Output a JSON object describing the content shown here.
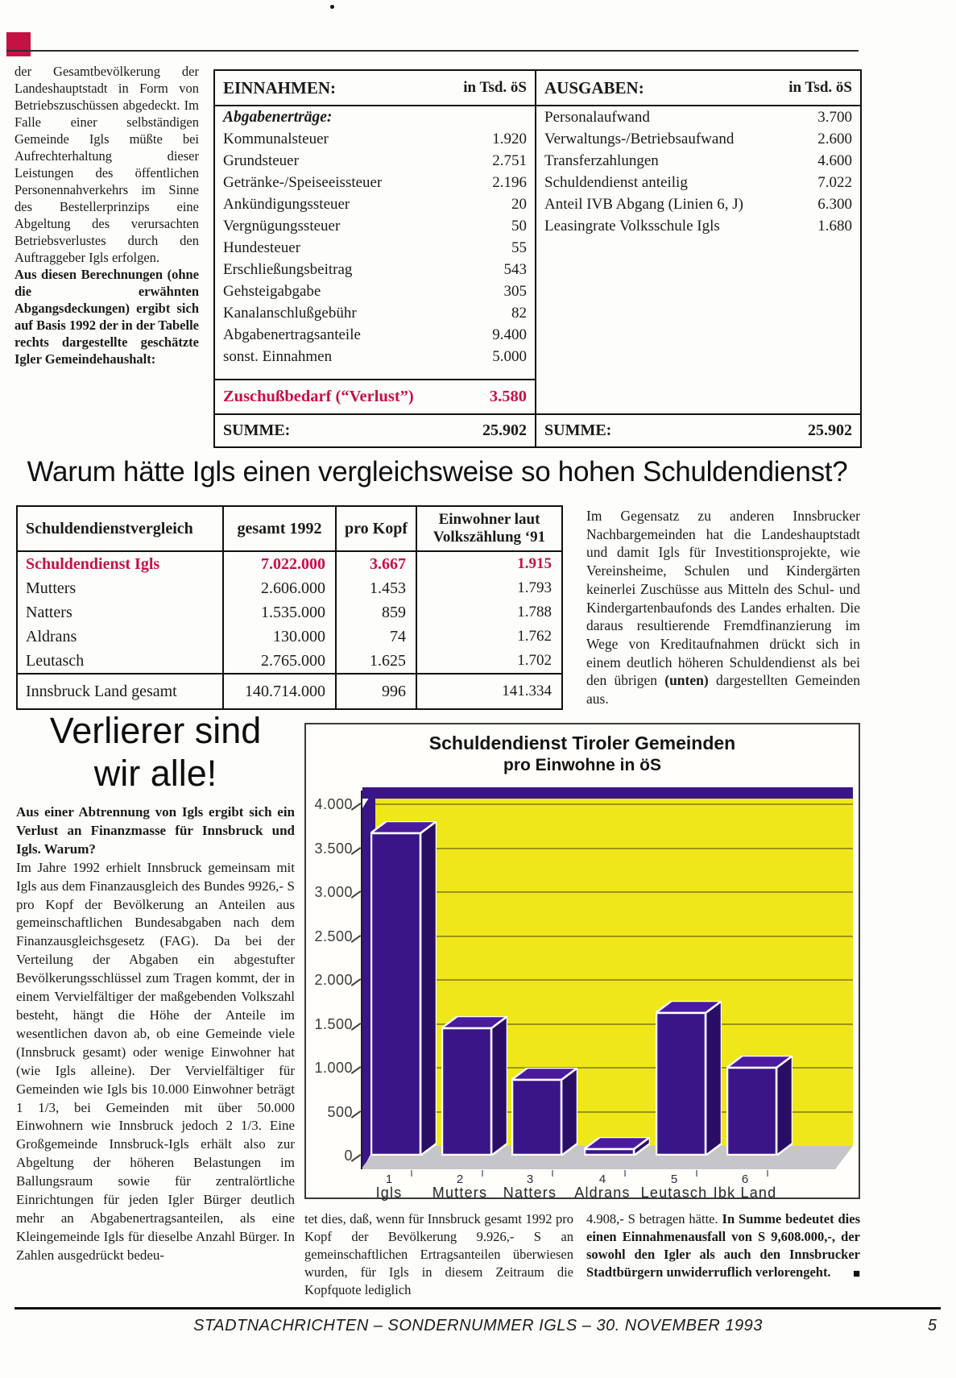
{
  "page": {
    "accent_color": "#c41245",
    "footer_text": "STADTNACHRICHTEN – SONDERNUMMER IGLS –  30. NOVEMBER 1993",
    "page_number": "5"
  },
  "intro_column": {
    "text_normal": "der Gesamtbevölkerung der Landeshauptstadt in Form von Betriebszuschüssen abgedeckt. Im Falle einer selbständigen Gemeinde Igls müßte bei Aufrechterhaltung dieser Leistungen des öffentlichen Personennahverkehrs im Sinne des Bestellerprinzips eine Abgeltung des verursachten Betriebsverlustes durch den Auftraggeber Igls erfolgen.",
    "text_bold": "Aus diesen Berechnungen (ohne die erwähnten Abgangsdeckungen) ergibt sich auf Basis 1992 der in der Tabelle rechts dargestellte geschätzte Igler Gemeindehaushalt:"
  },
  "budget_table": {
    "einnahmen": {
      "title": "EINNAHMEN:",
      "unit": "in Tsd. öS",
      "section": "Abgabenerträge:",
      "rows": [
        {
          "label": "Kommunalsteuer",
          "value": "1.920"
        },
        {
          "label": "Grundsteuer",
          "value": "2.751"
        },
        {
          "label": "Getränke-/Speiseeissteuer",
          "value": "2.196"
        },
        {
          "label": "Ankündigungssteuer",
          "value": "20"
        },
        {
          "label": "Vergnügungssteuer",
          "value": "50"
        },
        {
          "label": "Hundesteuer",
          "value": "55"
        },
        {
          "label": "Erschließungsbeitrag",
          "value": "543"
        },
        {
          "label": "Gehsteigabgabe",
          "value": "305"
        },
        {
          "label": "Kanalanschlußgebühr",
          "value": "82"
        },
        {
          "label": "Abgabenertragsanteile",
          "value": "9.400"
        },
        {
          "label": "sonst. Einnahmen",
          "value": "5.000"
        }
      ],
      "deficit": {
        "label": "Zuschußbedarf (“Verlust”)",
        "value": "3.580"
      },
      "sum": {
        "label": "SUMME:",
        "value": "25.902"
      }
    },
    "ausgaben": {
      "title": "AUSGABEN:",
      "unit": "in Tsd. öS",
      "rows": [
        {
          "label": "Personalaufwand",
          "value": "3.700"
        },
        {
          "label": "Verwaltungs-/Betriebsaufwand",
          "value": "2.600"
        },
        {
          "label": "Transferzahlungen",
          "value": "4.600"
        },
        {
          "label": "Schuldendienst anteilig",
          "value": "7.022"
        },
        {
          "label": "Anteil IVB Abgang (Linien 6, J)",
          "value": "6.300"
        },
        {
          "label": "Leasingrate Volksschule Igls",
          "value": "1.680"
        }
      ],
      "sum": {
        "label": "SUMME:",
        "value": "25.902"
      }
    }
  },
  "headline1": "Warum hätte Igls einen vergleichsweise so hohen Schuldendienst?",
  "comparison_table": {
    "headers": [
      "Schuldendienstvergleich",
      "gesamt 1992",
      "pro Kopf",
      "Einwohner laut\nVolkszählung ‘91"
    ],
    "rows": [
      {
        "label": "Schuldendienst Igls",
        "gesamt": "7.022.000",
        "pro_kopf": "3.667",
        "einwohner": "1.915",
        "highlight": true
      },
      {
        "label": "Mutters",
        "gesamt": "2.606.000",
        "pro_kopf": "1.453",
        "einwohner": "1.793",
        "highlight": false
      },
      {
        "label": "Natters",
        "gesamt": "1.535.000",
        "pro_kopf": "859",
        "einwohner": "1.788",
        "highlight": false
      },
      {
        "label": "Aldrans",
        "gesamt": "130.000",
        "pro_kopf": "74",
        "einwohner": "1.762",
        "highlight": false
      },
      {
        "label": "Leutasch",
        "gesamt": "2.765.000",
        "pro_kopf": "1.625",
        "einwohner": "1.702",
        "highlight": false
      }
    ],
    "total_row": {
      "label": "Innsbruck Land gesamt",
      "gesamt": "140.714.000",
      "pro_kopf": "996",
      "einwohner": "141.334"
    }
  },
  "right_column": {
    "part1": "Im Gegensatz zu anderen Innsbrucker Nachbargemeinden hat die Landeshauptstadt und damit Igls für Investitionsprojekte, wie Vereinsheime, Schulen und Kindergärten keinerlei Zuschüsse aus Mitteln des Schul- und Kindergartenbaufonds des Landes erhalten. Die daraus resultierende Fremdfinanzierung im Wege von Kreditaufnahmen drückt sich in einem deutlich höheren Schuldendienst als bei den übrigen ",
    "bold": "(unten)",
    "part2": " dargestellten Gemeinden aus."
  },
  "headline2": {
    "line1": "Verlierer sind",
    "line2": "wir alle!"
  },
  "left_article": {
    "bold_intro": "Aus einer Abtrennung von Igls ergibt sich ein Verlust an Finanzmasse für Innsbruck und Igls. Warum?",
    "body": "Im Jahre 1992 erhielt Innsbruck gemeinsam mit Igls aus dem Finanzausgleich des Bundes 9926,- S pro Kopf der Bevölkerung an Anteilen aus gemeinschaftlichen Bundesabgaben nach dem Finanzausgleichsgesetz (FAG). Da bei der Verteilung der Abgaben ein abgestufter Bevölkerungsschlüssel zum Tragen kommt, der in einem Vervielfältiger der maßgebenden Volkszahl besteht, hängt die Höhe der Anteile im wesentlichen davon ab, ob eine Gemeinde viele (Innsbruck gesamt) oder wenige Einwohner hat (wie Igls alleine). Der Vervielfältiger für Gemeinden wie Igls bis 10.000 Einwohner beträgt 1 1/3, bei Gemeinden mit über 50.000 Einwohnern wie Innsbruck jedoch 2 1/3. Eine Großgemeinde Innsbruck-Igls erhält also zur Abgeltung der höheren Belastungen im Ballungsraum sowie für zentralörtliche Einrichtungen für jeden Igler Bürger deutlich mehr an Abgabenertragsanteilen, als eine Kleingemeinde Igls für dieselbe Anzahl Bürger. In Zahlen ausgedrückt bedeu-"
  },
  "chart_data": {
    "type": "bar",
    "title": "Schuldendienst Tiroler Gemeinden",
    "subtitle": "pro Einwohne in öS",
    "categories": [
      "Igls",
      "Mutters",
      "Natters",
      "Aldrans",
      "Leutasch",
      "Ibk Land"
    ],
    "category_numbers": [
      "1",
      "2",
      "3",
      "4",
      "5",
      "6"
    ],
    "values": [
      3667,
      1453,
      859,
      74,
      1625,
      996
    ],
    "ylim": [
      0,
      4000
    ],
    "ytick_step": 500,
    "ytick_labels": [
      "0",
      "500",
      "1.000",
      "1.500",
      "2.000",
      "2.500",
      "3.000",
      "3.500",
      "4.000"
    ],
    "grid": true,
    "legend_position": "none",
    "colors": {
      "bar_front": "#3a1587",
      "bar_top": "#4a1b9d",
      "bar_side": "#2a0e66",
      "wall": "#f0e71a",
      "wall_edge": "#3a1587",
      "floor": "#c6c5ca",
      "gridline": "#8a860f"
    }
  },
  "bottom_middle_column": "tet dies, daß, wenn für Innsbruck gesamt 1992 pro Kopf der Bevölkerung 9.926,- S an gemeinschaftlichen Ertragsanteilen überwiesen wurden, für Igls in diesem Zeitraum die Kopfquote lediglich",
  "bottom_right_column": {
    "part1": "4.908,- S betragen hätte. ",
    "bold": "In Summe bedeutet dies einen Einnahmenausfall von S 9,608.000,-, der sowohl den Igler als auch den Innsbrucker Stadtbürgern unwiderruflich verlorengeht.",
    "end_mark": "■"
  }
}
